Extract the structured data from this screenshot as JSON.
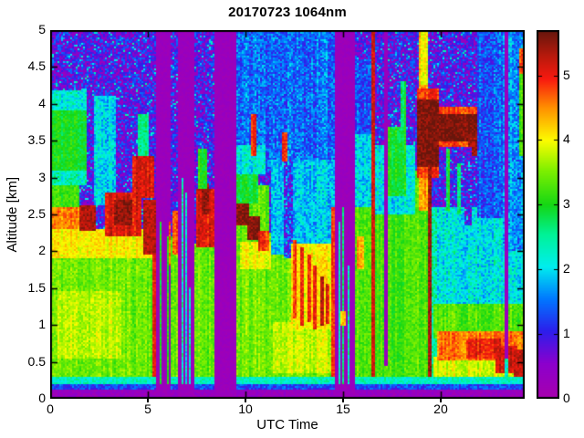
{
  "chart_data": {
    "type": "heatmap",
    "title": "20170723 1064nm",
    "xlabel": "UTC Time",
    "ylabel": "Altitude [km]",
    "x_range": [
      0,
      24.3
    ],
    "y_range": [
      0,
      5
    ],
    "x_tick_labels": [
      "0",
      "5",
      "10",
      "15",
      "20"
    ],
    "y_tick_labels": [
      "0",
      "0.5",
      "1",
      "1.5",
      "2",
      "2.5",
      "3",
      "3.5",
      "4",
      "4.5",
      "5"
    ],
    "colorbar": {
      "range": [
        0,
        5.7
      ],
      "tick_labels": [
        "0",
        "1",
        "2",
        "3",
        "4",
        "5"
      ]
    },
    "colormap_stops": [
      [
        0.0,
        168,
        0,
        172
      ],
      [
        0.55,
        140,
        0,
        205
      ],
      [
        1.05,
        45,
        30,
        235
      ],
      [
        1.55,
        0,
        120,
        255
      ],
      [
        2.05,
        0,
        238,
        238
      ],
      [
        2.55,
        0,
        242,
        150
      ],
      [
        3.0,
        20,
        215,
        20
      ],
      [
        3.55,
        130,
        240,
        0
      ],
      [
        4.0,
        252,
        252,
        0
      ],
      [
        4.5,
        255,
        145,
        0
      ],
      [
        4.95,
        248,
        25,
        15
      ],
      [
        5.3,
        185,
        25,
        12
      ],
      [
        5.7,
        100,
        22,
        12
      ]
    ],
    "gaps_utc": [
      [
        5.44,
        6.2
      ],
      [
        6.5,
        7.35
      ],
      [
        8.42,
        9.5
      ],
      [
        14.57,
        15.62
      ],
      [
        17.1,
        17.28
      ],
      [
        23.28,
        23.42
      ]
    ],
    "render_seed": 11,
    "features": [
      {
        "t": [
          0,
          24.3
        ],
        "z": [
          0,
          5
        ],
        "v": 0.75
      },
      {
        "t": [
          9.4,
          14.56
        ],
        "z": [
          3.1,
          5
        ],
        "v": 1.45
      },
      {
        "t": [
          15.62,
          16.45
        ],
        "z": [
          3.6,
          4.6
        ],
        "v": 1.3
      },
      {
        "t": [
          0,
          5.45
        ],
        "z": [
          0.25,
          2.0
        ],
        "v": 3.45
      },
      {
        "t": [
          0.4,
          3.6
        ],
        "z": [
          0.55,
          1.45
        ],
        "v": 3.75
      },
      {
        "t": [
          0,
          5.45
        ],
        "z": [
          1.9,
          2.3
        ],
        "v": 4.05
      },
      {
        "t": [
          5.2,
          5.44
        ],
        "z": [
          0.25,
          2.1
        ],
        "v": 5.0
      },
      {
        "t": [
          0,
          1.45
        ],
        "z": [
          2.3,
          2.62
        ],
        "v": 4.55
      },
      {
        "t": [
          0,
          1.45
        ],
        "z": [
          2.6,
          2.95
        ],
        "v": 3.2
      },
      {
        "t": [
          0,
          1.9
        ],
        "z": [
          2.9,
          3.12
        ],
        "v": 2.35
      },
      {
        "t": [
          0,
          1.85
        ],
        "z": [
          3.1,
          3.95
        ],
        "v": 3.0
      },
      {
        "t": [
          0,
          1.9
        ],
        "z": [
          3.9,
          4.18
        ],
        "v": 2.2
      },
      {
        "t": [
          1.5,
          2.35
        ],
        "z": [
          2.28,
          2.62
        ],
        "v": 5.35
      },
      {
        "t": [
          1.9,
          2.2
        ],
        "z": [
          2.62,
          5
        ],
        "v": 0.75
      },
      {
        "t": [
          2.2,
          3.35
        ],
        "z": [
          2.62,
          4.1
        ],
        "v": 2.0
      },
      {
        "t": [
          2.8,
          4.65
        ],
        "z": [
          2.2,
          2.8
        ],
        "v": 5.1
      },
      {
        "t": [
          3.3,
          4.2
        ],
        "z": [
          2.35,
          2.7
        ],
        "v": 5.5
      },
      {
        "t": [
          4.75,
          5.44
        ],
        "z": [
          1.95,
          2.7
        ],
        "v": 5.3
      },
      {
        "t": [
          4.5,
          5.05
        ],
        "z": [
          2.8,
          3.85
        ],
        "v": 2.6
      },
      {
        "t": [
          4.2,
          5.3
        ],
        "z": [
          2.72,
          3.3
        ],
        "v": 5.15
      },
      {
        "t": [
          6.2,
          6.5
        ],
        "z": [
          0.25,
          2.2
        ],
        "v": 3.4
      },
      {
        "t": [
          6.22,
          6.5
        ],
        "z": [
          1.95,
          2.55
        ],
        "v": 4.7
      },
      {
        "t": [
          7.35,
          8.42
        ],
        "z": [
          0.25,
          2.1
        ],
        "v": 3.4
      },
      {
        "t": [
          7.45,
          8.42
        ],
        "z": [
          2.05,
          2.85
        ],
        "v": 5.1
      },
      {
        "t": [
          7.8,
          8.12
        ],
        "z": [
          2.5,
          2.92
        ],
        "v": 5.5
      },
      {
        "t": [
          7.55,
          8.0
        ],
        "z": [
          2.85,
          3.4
        ],
        "v": 3.0
      },
      {
        "t": [
          9.5,
          14.56
        ],
        "z": [
          0.25,
          2.25
        ],
        "v": 3.45
      },
      {
        "t": [
          11.4,
          14.56
        ],
        "z": [
          0.35,
          1.05
        ],
        "v": 3.8
      },
      {
        "t": [
          9.5,
          11.25
        ],
        "z": [
          2.0,
          2.9
        ],
        "v": 3.35
      },
      {
        "t": [
          9.7,
          11.35
        ],
        "z": [
          1.75,
          2.12
        ],
        "v": 3.95
      },
      {
        "t": [
          9.5,
          10.15
        ],
        "z": [
          2.35,
          2.68
        ],
        "v": 5.55
      },
      {
        "t": [
          10.05,
          10.75
        ],
        "z": [
          2.15,
          2.48
        ],
        "v": 5.55
      },
      {
        "t": [
          10.65,
          11.25
        ],
        "z": [
          2.0,
          2.28
        ],
        "v": 4.9
      },
      {
        "t": [
          9.5,
          10.65
        ],
        "z": [
          2.65,
          3.08
        ],
        "v": 2.9
      },
      {
        "t": [
          9.5,
          11.0
        ],
        "z": [
          3.05,
          3.45
        ],
        "v": 2.15
      },
      {
        "t": [
          11.3,
          14.56
        ],
        "z": [
          1.95,
          3.25
        ],
        "v": 1.9
      },
      {
        "t": [
          12.0,
          12.42
        ],
        "z": [
          1.9,
          3.3
        ],
        "v": 0.95
      },
      {
        "t": [
          10.32,
          10.6
        ],
        "z": [
          3.3,
          3.85
        ],
        "v": 4.9
      },
      {
        "t": [
          11.9,
          12.18
        ],
        "z": [
          3.22,
          3.62
        ],
        "v": 4.95
      },
      {
        "t": [
          12.3,
          14.35
        ],
        "z": [
          0.95,
          2.1
        ],
        "v": 4.05
      },
      {
        "t": [
          12.45,
          12.62
        ],
        "z": [
          1.1,
          2.15
        ],
        "v": 4.95
      },
      {
        "t": [
          12.8,
          12.97
        ],
        "z": [
          1.0,
          2.05
        ],
        "v": 4.9
      },
      {
        "t": [
          13.15,
          13.32
        ],
        "z": [
          1.05,
          1.95
        ],
        "v": 5.0
      },
      {
        "t": [
          13.5,
          13.68
        ],
        "z": [
          0.95,
          1.8
        ],
        "v": 5.15
      },
      {
        "t": [
          13.85,
          14.02
        ],
        "z": [
          1.0,
          1.65
        ],
        "v": 5.3
      },
      {
        "t": [
          14.15,
          14.32
        ],
        "z": [
          1.02,
          1.55
        ],
        "v": 5.0
      },
      {
        "t": [
          14.42,
          14.57
        ],
        "z": [
          0.3,
          2.6
        ],
        "v": 4.85
      },
      {
        "t": [
          15.62,
          16.48
        ],
        "z": [
          0.25,
          2.6
        ],
        "v": 3.3
      },
      {
        "t": [
          15.62,
          16.48
        ],
        "z": [
          2.6,
          3.6
        ],
        "v": 2.0
      },
      {
        "t": [
          15.7,
          16.1
        ],
        "z": [
          1.75,
          2.2
        ],
        "v": 4.4
      },
      {
        "t": [
          16.45,
          16.63
        ],
        "z": [
          0.3,
          5.0
        ],
        "v": 5.2
      },
      {
        "t": [
          16.63,
          18.72
        ],
        "z": [
          0.25,
          2.5
        ],
        "v": 3.25
      },
      {
        "t": [
          16.63,
          18.72
        ],
        "z": [
          2.5,
          3.45
        ],
        "v": 2.1
      },
      {
        "t": [
          17.3,
          18.25
        ],
        "z": [
          2.75,
          3.7
        ],
        "v": 3.0
      },
      {
        "t": [
          17.9,
          18.2
        ],
        "z": [
          3.65,
          4.3
        ],
        "v": 2.85
      },
      {
        "t": [
          18.72,
          19.4
        ],
        "z": [
          0.3,
          3.1
        ],
        "v": 3.35
      },
      {
        "t": [
          18.85,
          19.38
        ],
        "z": [
          2.55,
          5.0
        ],
        "v": 4.5
      },
      {
        "t": [
          19.0,
          19.32
        ],
        "z": [
          4.25,
          5.0
        ],
        "v": 4.05
      },
      {
        "t": [
          18.75,
          19.95
        ],
        "z": [
          3.0,
          4.2
        ],
        "v": 4.9
      },
      {
        "t": [
          18.8,
          19.95
        ],
        "z": [
          3.15,
          4.05
        ],
        "v": 5.6
      },
      {
        "t": [
          19.9,
          22.0
        ],
        "z": [
          3.42,
          3.95
        ],
        "v": 4.8
      },
      {
        "t": [
          19.95,
          21.95
        ],
        "z": [
          3.5,
          3.85
        ],
        "v": 5.6
      },
      {
        "t": [
          21.4,
          22.3
        ],
        "z": [
          3.3,
          3.58
        ],
        "v": 5.4
      },
      {
        "t": [
          19.35,
          19.56
        ],
        "z": [
          0.22,
          3.2
        ],
        "v": 5.4
      },
      {
        "t": [
          19.56,
          19.78
        ],
        "z": [
          0.3,
          2.6
        ],
        "v": 2.35
      },
      {
        "t": [
          19.78,
          24.3
        ],
        "z": [
          1.15,
          2.6
        ],
        "v": 2.1
      },
      {
        "t": [
          21.25,
          21.55
        ],
        "z": [
          2.35,
          3.42
        ],
        "v": 0.72
      },
      {
        "t": [
          20.25,
          20.45
        ],
        "z": [
          2.55,
          3.4
        ],
        "v": 2.9
      },
      {
        "t": [
          20.8,
          21.0
        ],
        "z": [
          2.5,
          3.2
        ],
        "v": 2.7
      },
      {
        "t": [
          21.9,
          24.3
        ],
        "z": [
          2.45,
          5
        ],
        "v": 1.35
      },
      {
        "t": [
          23.2,
          24.3
        ],
        "z": [
          2.0,
          5
        ],
        "v": 1.65
      },
      {
        "t": [
          19.6,
          24.3
        ],
        "z": [
          0.82,
          1.28
        ],
        "v": 3.3
      },
      {
        "t": [
          19.6,
          24.3
        ],
        "z": [
          0.28,
          0.56
        ],
        "v": 3.85
      },
      {
        "t": [
          19.8,
          24.3
        ],
        "z": [
          0.52,
          0.92
        ],
        "v": 4.6
      },
      {
        "t": [
          21.3,
          23.05
        ],
        "z": [
          0.55,
          0.82
        ],
        "v": 5.0
      },
      {
        "t": [
          22.8,
          23.95
        ],
        "z": [
          0.35,
          0.72
        ],
        "v": 5.1
      },
      {
        "t": [
          23.7,
          24.28
        ],
        "z": [
          0.2,
          0.66
        ],
        "v": 5.25
      },
      {
        "t": [
          24.0,
          24.3
        ],
        "z": [
          3.3,
          4.5
        ],
        "v": 3.3
      },
      {
        "t": [
          24.05,
          24.28
        ],
        "z": [
          4.4,
          4.75
        ],
        "v": 4.8
      },
      {
        "t": [
          0,
          24.3
        ],
        "z": [
          0.2,
          0.29
        ],
        "v": 2.3,
        "n": 0.35
      },
      {
        "t": [
          0,
          24.3
        ],
        "z": [
          0.13,
          0.2
        ],
        "v": 1.25,
        "n": 0.4
      },
      {
        "t": [
          0,
          24.3
        ],
        "z": [
          0,
          0.13
        ],
        "v": 0.33,
        "n": 0.22
      },
      {
        "t": [
          5.44,
          6.2
        ],
        "z": [
          0,
          5
        ],
        "v": 0.26,
        "n": 0.13
      },
      {
        "t": [
          5.62,
          5.69
        ],
        "z": [
          0.2,
          2.4
        ],
        "v": 3.0
      },
      {
        "t": [
          5.95,
          6.03
        ],
        "z": [
          0.2,
          2.2
        ],
        "v": 3.1
      },
      {
        "t": [
          6.06,
          6.13
        ],
        "z": [
          1.8,
          2.4
        ],
        "v": 4.6
      },
      {
        "t": [
          6.5,
          7.35
        ],
        "z": [
          0,
          5
        ],
        "v": 0.26,
        "n": 0.13
      },
      {
        "t": [
          6.72,
          6.79
        ],
        "z": [
          0.2,
          3.0
        ],
        "v": 2.3
      },
      {
        "t": [
          6.96,
          7.03
        ],
        "z": [
          0.2,
          2.8
        ],
        "v": 2.25
      },
      {
        "t": [
          7.12,
          7.19
        ],
        "z": [
          0.2,
          1.5
        ],
        "v": 2.4
      },
      {
        "t": [
          8.42,
          9.5
        ],
        "z": [
          0,
          5
        ],
        "v": 0.26,
        "n": 0.13
      },
      {
        "t": [
          14.57,
          15.62
        ],
        "z": [
          0,
          5
        ],
        "v": 0.26,
        "n": 0.13
      },
      {
        "t": [
          14.75,
          14.82
        ],
        "z": [
          0.2,
          2.4
        ],
        "v": 2.5
      },
      {
        "t": [
          15.0,
          15.07
        ],
        "z": [
          0.2,
          2.6
        ],
        "v": 2.7
      },
      {
        "t": [
          15.25,
          15.32
        ],
        "z": [
          0.2,
          1.8
        ],
        "v": 2.3
      },
      {
        "t": [
          14.85,
          15.18
        ],
        "z": [
          0.98,
          1.18
        ],
        "v": 4.4
      },
      {
        "t": [
          17.1,
          17.28
        ],
        "z": [
          0.45,
          5
        ],
        "v": 0.28,
        "n": 0.13
      },
      {
        "t": [
          23.28,
          23.42
        ],
        "z": [
          0.32,
          5
        ],
        "v": 0.28,
        "n": 0.13
      },
      {
        "t": [
          23.28,
          23.42
        ],
        "z": [
          0.3,
          0.55
        ],
        "v": 2.3
      }
    ]
  }
}
